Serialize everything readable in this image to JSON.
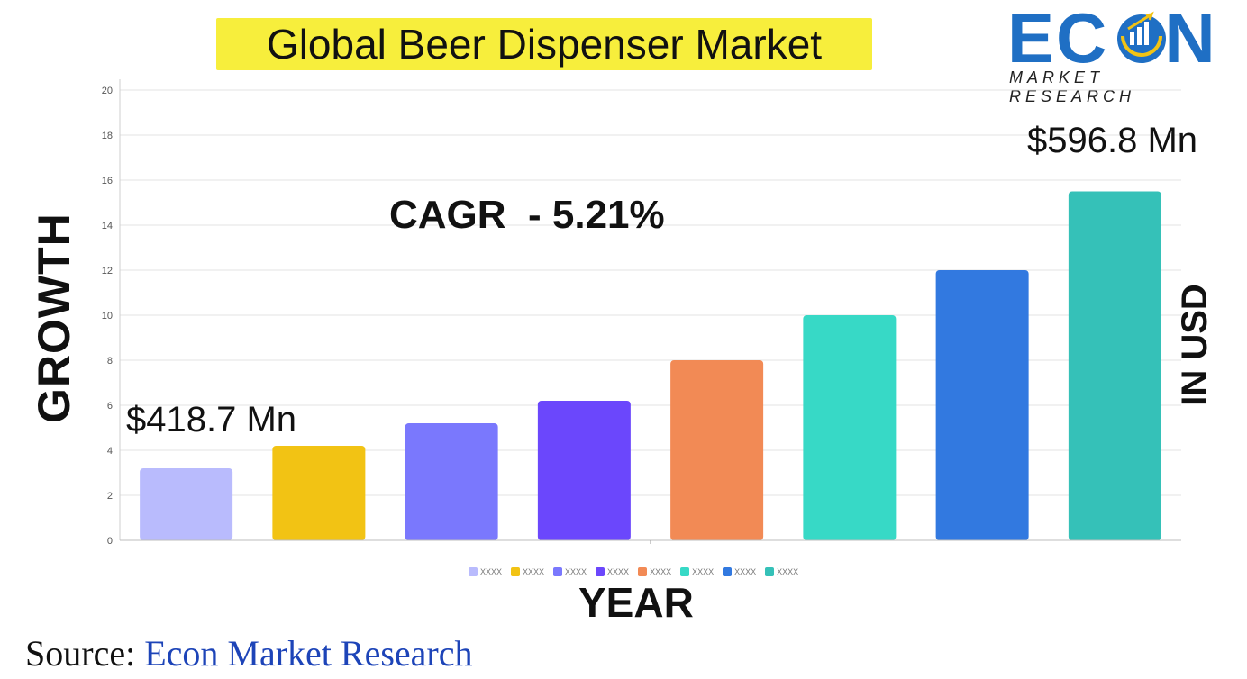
{
  "title": "Global Beer Dispenser Market",
  "logo": {
    "brand": "ECON",
    "brand_left": "EC",
    "brand_right": "N",
    "subtitle": "MARKET RESEARCH"
  },
  "annotations": {
    "cagr": "CAGR  - 5.21%",
    "start_value": "$418.7 Mn",
    "end_value": "$596.8 Mn"
  },
  "axis_titles": {
    "y_left": "GROWTH",
    "y_right": "IN USD",
    "x": "YEAR"
  },
  "source": {
    "prefix": "Source: ",
    "name": "Econ Market Research"
  },
  "chart_data": {
    "type": "bar",
    "title": "Global Beer Dispenser Market",
    "xlabel": "YEAR",
    "ylabel": "GROWTH",
    "ylim": [
      0,
      20
    ],
    "yticks": [
      0,
      2,
      4,
      6,
      8,
      10,
      12,
      14,
      16,
      18,
      20
    ],
    "grid": true,
    "legend_position": "bottom",
    "categories": [
      "XXXX",
      "XXXX",
      "XXXX",
      "XXXX",
      "XXXX",
      "XXXX",
      "XXXX",
      "XXXX"
    ],
    "values": [
      3.2,
      4.2,
      5.2,
      6.2,
      8.0,
      10.0,
      12.0,
      15.5
    ],
    "colors": [
      "#b9bbfd",
      "#f2c314",
      "#7a78fd",
      "#6b47fc",
      "#f28a55",
      "#37d9c6",
      "#3279e0",
      "#35c1b8"
    ]
  }
}
